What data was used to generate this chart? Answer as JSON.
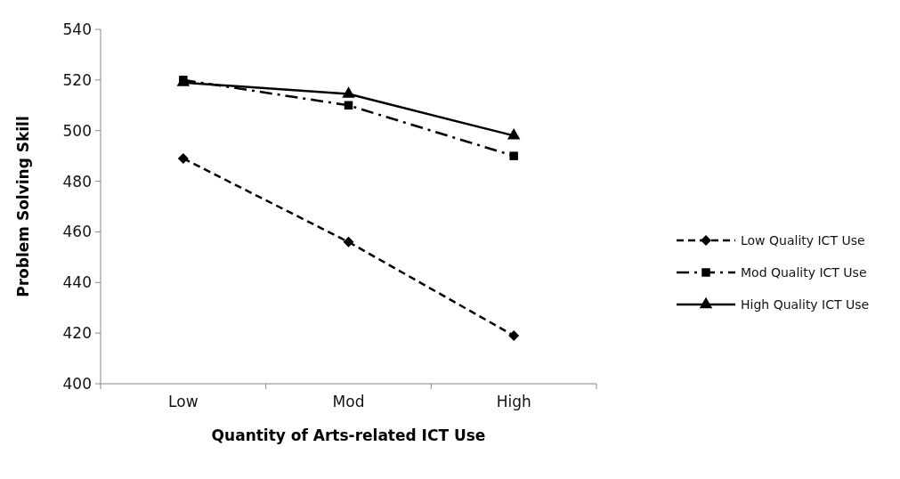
{
  "chart_data": {
    "type": "line",
    "xlabel": "Quantity of Arts-related ICT Use",
    "ylabel": "Problem Solving Skill",
    "categories": [
      "Low",
      "Mod",
      "High"
    ],
    "ylim": [
      400,
      540
    ],
    "yticks": [
      400,
      420,
      440,
      460,
      480,
      500,
      520,
      540
    ],
    "grid": false,
    "legend": "right",
    "series": [
      {
        "name": "Low Quality ICT Use",
        "color": "#000000",
        "values": [
          489,
          456,
          419
        ],
        "marker": "diamond",
        "line_style": "dashed"
      },
      {
        "name": "Mod Quality ICT Use",
        "color": "#000000",
        "values": [
          520,
          510,
          490
        ],
        "marker": "square",
        "line_style": "dashdot"
      },
      {
        "name": "High Quality ICT Use",
        "color": "#000000",
        "values": [
          519,
          514.5,
          498
        ],
        "marker": "triangle",
        "line_style": "solid"
      }
    ]
  }
}
